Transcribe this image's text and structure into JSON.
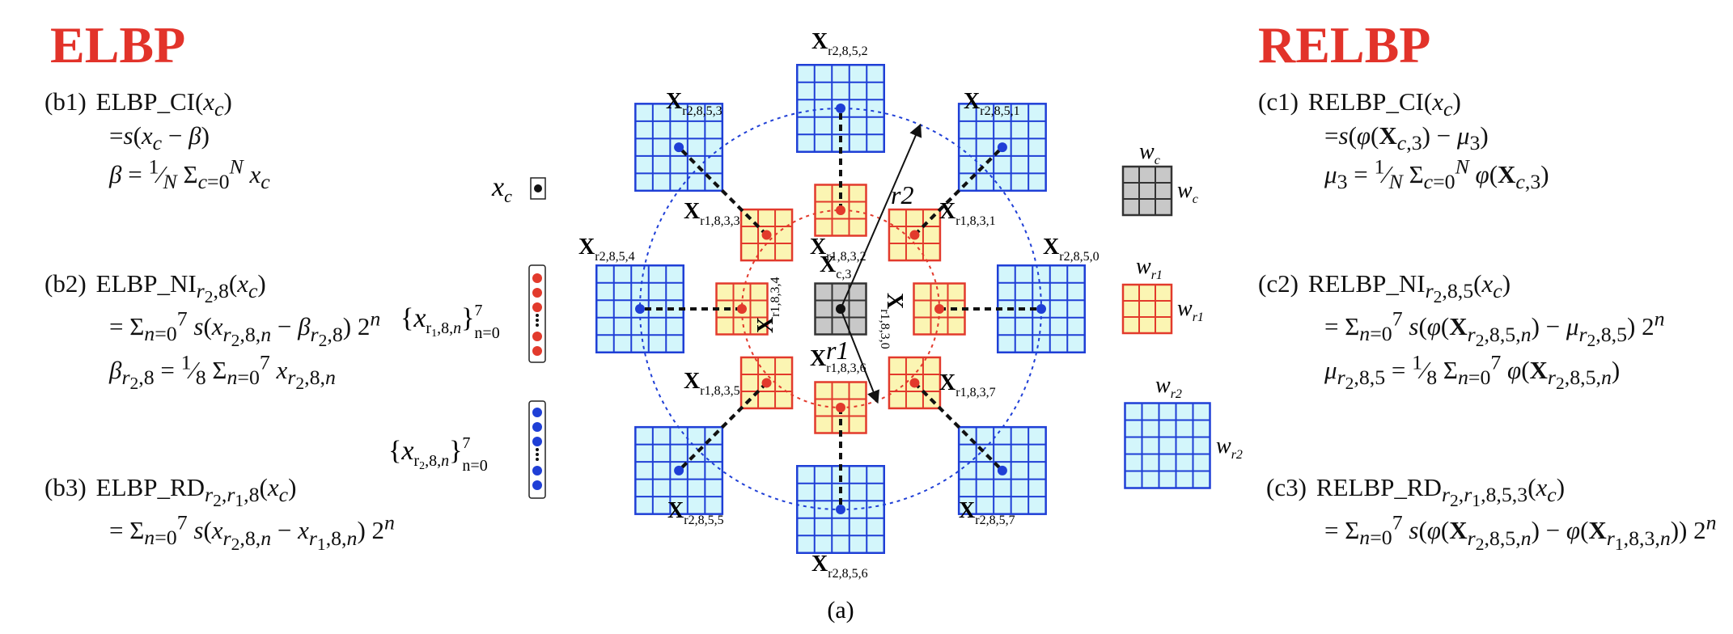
{
  "headings": {
    "left": "ELBP",
    "right": "RELBP"
  },
  "elbp": {
    "b1": {
      "tag": "(b1)",
      "line1": "ELBP_CI(x_c)",
      "line2": "=s(x_c − β)",
      "line3": "β = (1/N) Σ_{c=0}^{N} x_c"
    },
    "b2": {
      "tag": "(b2)",
      "line1": "ELBP_NI_{r2,8}(x_c)",
      "line2": "= Σ_{n=0}^{7} s(x_{r2,8,n} − β_{r2,8}) 2^n",
      "line3": "β_{r2,8} = (1/8) Σ_{n=0}^{7} x_{r2,8,n}"
    },
    "b3": {
      "tag": "(b3)",
      "line1": "ELBP_RD_{r2,r1,8}(x_c)",
      "line2": "= Σ_{n=0}^{7} s(x_{r2,8,n} − x_{r1,8,n}) 2^n"
    }
  },
  "relbp": {
    "c1": {
      "tag": "(c1)",
      "line1": "RELBP_CI(x_c)",
      "line2": "=s(φ(X_{c,3}) − μ_3)",
      "line3": "μ_3 = (1/N) Σ_{c=0}^{N} φ(X_{c,3})"
    },
    "c2": {
      "tag": "(c2)",
      "line1": "RELBP_NI_{r2,8,5}(x_c)",
      "line2": "= Σ_{n=0}^{7} s(φ(X_{r2,8,5,n}) − μ_{r2,8,5}) 2^n",
      "line3": "μ_{r2,8,5} = (1/8) Σ_{n=0}^{7} φ(X_{r2,8,5,n})"
    },
    "c3": {
      "tag": "(c3)",
      "line1": "RELBP_RD_{r2,r1,8,5,3}(x_c)",
      "line2": "= Σ_{n=0}^{7} s(φ(X_{r2,8,5,n}) − φ(X_{r1,8,3,n})) 2^n"
    }
  },
  "legend": {
    "xc": "x_c",
    "red_set": "{x_{r1,8,n}}_{n=0}^{7}",
    "blue_set": "{x_{r2,8,n}}_{n=0}^{7}",
    "wc": "w_c",
    "wr1": "w_{r1}",
    "wr2": "w_{r2}"
  },
  "diagram": {
    "caption": "(a)",
    "center_label": "X_{c,3}",
    "r1_label": "r1",
    "r2_label": "r2",
    "inner_labels": [
      "X_{r1,8,3,0}",
      "X_{r1,8,3,1}",
      "X_{r1,8,3,2}",
      "X_{r1,8,3,3}",
      "X_{r1,8,3,4}",
      "X_{r1,8,3,5}",
      "X_{r1,8,3,6}",
      "X_{r1,8,3,7}"
    ],
    "outer_labels": [
      "X_{r2,8,5,0}",
      "X_{r2,8,5,1}",
      "X_{r2,8,5,2}",
      "X_{r2,8,5,3}",
      "X_{r2,8,5,4}",
      "X_{r2,8,5,5}",
      "X_{r2,8,5,6}",
      "X_{r2,8,5,7}"
    ]
  },
  "colors": {
    "heading": "#e2332a",
    "red": "#e23a2c",
    "blue": "#1f3fd6",
    "yellow_fill": "#fbf5b3",
    "cyan_fill": "#d3f6fb",
    "gray_fill": "#c8c8c8"
  }
}
